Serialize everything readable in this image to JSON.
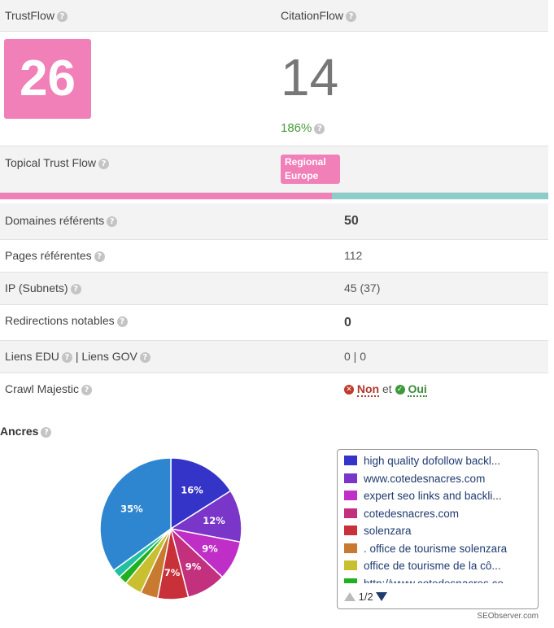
{
  "header": {
    "trustflow_label": "TrustFlow",
    "citationflow_label": "CitationFlow"
  },
  "flow": {
    "trustflow_value": "26",
    "citationflow_value": "14",
    "ratio": "186%"
  },
  "topical": {
    "label": "Topical Trust Flow",
    "badge": "Regional Europe",
    "bar_split": 0.605
  },
  "rows": [
    {
      "label": "Domaines référents",
      "value": "50"
    },
    {
      "label": "Pages référentes",
      "value": "112"
    },
    {
      "label": "IP (Subnets)",
      "value": "45 (37)"
    },
    {
      "label": "Redirections notables",
      "value": "0"
    },
    {
      "label_a": "Liens EDU",
      "sep": "|",
      "label_b": "Liens GOV",
      "value": "0 | 0"
    },
    {
      "label": "Crawl Majestic",
      "non": "Non",
      "et": "et",
      "oui": "Oui"
    }
  ],
  "anchors": {
    "title": "Ancres"
  },
  "chart_data": {
    "type": "pie",
    "title": "",
    "slices": [
      {
        "name": "high quality dofollow backl...",
        "value": 16,
        "label": "16%",
        "color": "#3434c8"
      },
      {
        "name": "www.cotedesnacres.com",
        "value": 12,
        "label": "12%",
        "color": "#7a36c8"
      },
      {
        "name": "expert seo links and backli...",
        "value": 9,
        "label": "9%",
        "color": "#c02ec8"
      },
      {
        "name": "cotedesnacres.com",
        "value": 9,
        "label": "9%",
        "color": "#c2307e"
      },
      {
        "name": "solenzara",
        "value": 7,
        "label": "7%",
        "color": "#c8303a"
      },
      {
        "name": ". office de tourisme solenzara",
        "value": 4,
        "label": "",
        "color": "#c87a30"
      },
      {
        "name": "office de tourisme de la cô...",
        "value": 4,
        "label": "",
        "color": "#c8c030"
      },
      {
        "name": "http://www.cotedesnacres.co",
        "value": 2,
        "label": "",
        "color": "#20b020"
      },
      {
        "name": "",
        "value": 2,
        "label": "",
        "color": "#20c0a0"
      },
      {
        "name": "",
        "value": 35,
        "label": "35%",
        "color": "#2f86d0"
      }
    ],
    "legend_position": "right"
  },
  "legend": {
    "page": "1/2"
  },
  "credit": "SEObserver.com",
  "icons": {
    "help": "question-circle-icon",
    "no": "times-circle-icon",
    "yes": "check-circle-icon"
  },
  "colors": {
    "pink": "#f17fb8",
    "teal": "#8ccdc9",
    "green": "#4a9a3a",
    "red": "#b0392b"
  }
}
